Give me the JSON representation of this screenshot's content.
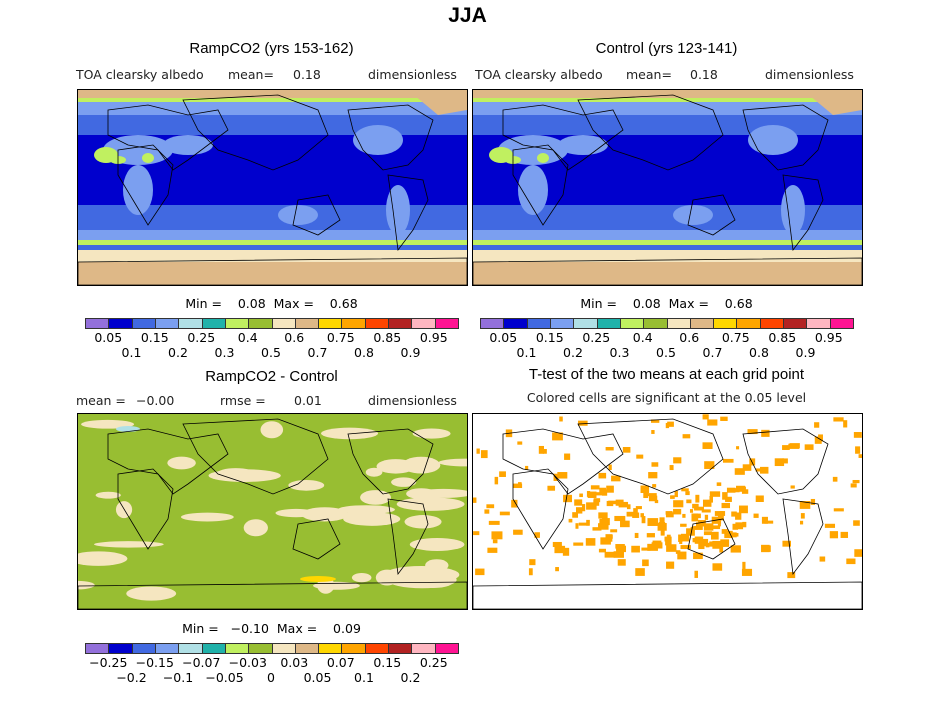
{
  "title": "JJA",
  "panels": {
    "ramp": {
      "title": "RampCO2 (yrs 153-162)",
      "variable": "TOA clearsky albedo",
      "mean_label": "mean=",
      "mean": "0.18",
      "units": "dimensionless",
      "min_max": "Min =    0.08  Max =    0.68"
    },
    "control": {
      "title": "Control (yrs 123-141)",
      "variable": "TOA clearsky albedo",
      "mean_label": "mean=",
      "mean": "0.18",
      "units": "dimensionless",
      "min_max": "Min =    0.08  Max =    0.68"
    },
    "diff": {
      "title": "RampCO2 - Control",
      "mean_label": "mean =",
      "mean": "−0.00",
      "rmse_label": "rmse =",
      "rmse": "0.01",
      "units": "dimensionless",
      "min_max": "Min =   −0.10  Max =    0.09"
    },
    "ttest": {
      "title": "T-test of the two means at each grid point",
      "subtitle": "Colored cells are significant at the 0.05 level",
      "color": "#FFA500"
    }
  },
  "colorbar_colors": [
    "#9370DB",
    "#0000CD",
    "#4169E1",
    "#7B9FF0",
    "#B0E0E6",
    "#20B2AA",
    "#C0F060",
    "#98BE32",
    "#F5E6C0",
    "#DEB887",
    "#FFD700",
    "#FFA500",
    "#FF4500",
    "#B22222",
    "#FFB6C1",
    "#FF1493"
  ],
  "colorbar_labels": [
    "0.05",
    "0.1",
    "0.15",
    "0.2",
    "0.25",
    "0.3",
    "0.4",
    "0.5",
    "0.6",
    "0.7",
    "0.75",
    "0.8",
    "0.85",
    "0.9",
    "0.95"
  ],
  "diff_colorbar_labels": [
    "−0.25",
    "−0.2",
    "−0.15",
    "−0.1",
    "−0.07",
    "−0.05",
    "−0.03",
    "0",
    "0.03",
    "0.05",
    "0.07",
    "0.1",
    "0.15",
    "0.2",
    "0.25"
  ]
}
